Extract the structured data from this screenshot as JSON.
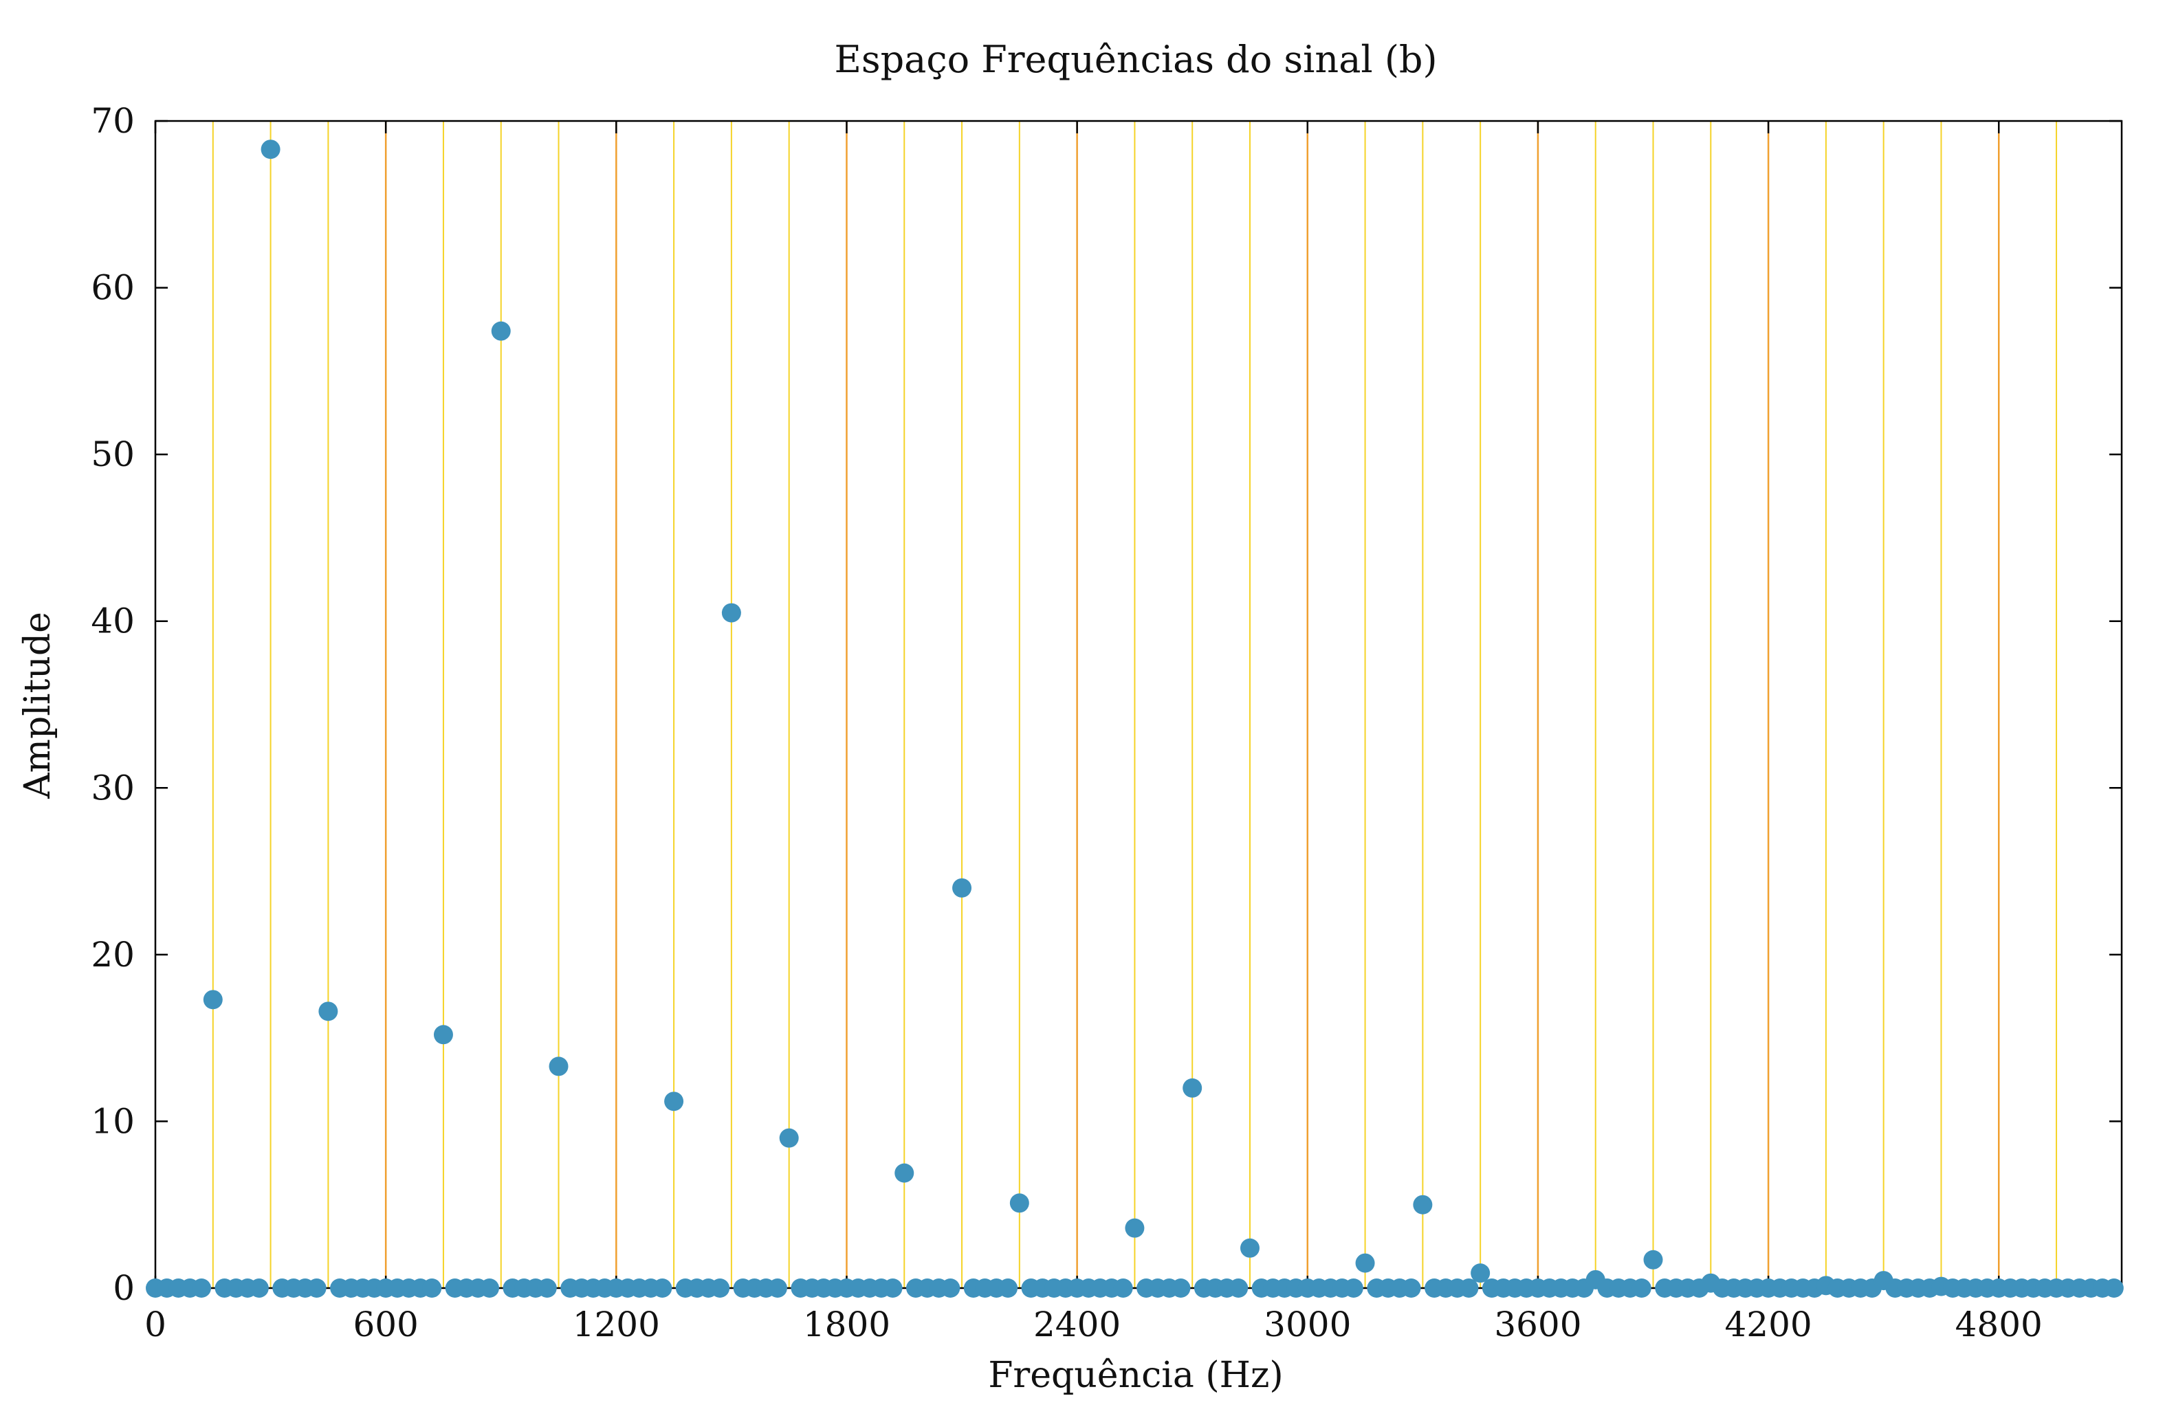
{
  "chart_data": {
    "type": "scatter",
    "title": "Espaço Frequências do sinal (b)",
    "xlabel": "Frequência (Hz)",
    "ylabel": "Amplitude",
    "xlim": [
      0,
      5120
    ],
    "ylim": [
      0,
      70
    ],
    "xticks": [
      0,
      600,
      1200,
      1800,
      2400,
      3000,
      3600,
      4200,
      4800
    ],
    "yticks": [
      0,
      10,
      20,
      30,
      40,
      50,
      60,
      70
    ],
    "grid": true,
    "legend": "none",
    "colors": {
      "points": "#3f92bd",
      "grid_minor": "#f5d328",
      "grid_major": "#f0a030",
      "axes": "#000000"
    },
    "vlines_minor": [
      150,
      300,
      450,
      750,
      900,
      1050,
      1350,
      1500,
      1650,
      1950,
      2100,
      2250,
      2550,
      2700,
      2850,
      3150,
      3300,
      3450,
      3750,
      3900,
      4050,
      4350,
      4500,
      4650,
      4950
    ],
    "vlines_major": [
      600,
      1200,
      1800,
      2400,
      3000,
      3600,
      4200,
      4800
    ],
    "series": [
      {
        "x_start": 0,
        "x_step": 30,
        "points": [
          [
            150,
            17.3
          ],
          [
            300,
            68.3
          ],
          [
            450,
            16.6
          ],
          [
            750,
            15.2
          ],
          [
            900,
            57.4
          ],
          [
            1050,
            13.3
          ],
          [
            1350,
            11.2
          ],
          [
            1500,
            40.5
          ],
          [
            1650,
            9.0
          ],
          [
            1950,
            6.9
          ],
          [
            2100,
            24.0
          ],
          [
            2250,
            5.1
          ],
          [
            2550,
            3.6
          ],
          [
            2700,
            12.0
          ],
          [
            2850,
            2.4
          ],
          [
            3150,
            1.5
          ],
          [
            3300,
            5.0
          ],
          [
            3450,
            0.9
          ],
          [
            3750,
            0.5
          ],
          [
            3900,
            1.7
          ],
          [
            4050,
            0.3
          ],
          [
            4350,
            0.15
          ],
          [
            4500,
            0.45
          ],
          [
            4650,
            0.1
          ]
        ]
      }
    ]
  }
}
